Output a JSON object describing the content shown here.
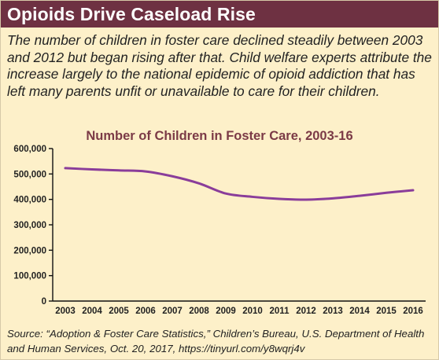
{
  "header": {
    "title": "Opioids Drive Caseload Rise"
  },
  "subtitle": "The number of children in foster care declined steadily between 2003 and 2012 but began rising after that. Child welfare experts attribute the increase largely to the national epidemic of opioid addiction that has left many parents unfit or unavailable to care for their children.",
  "source": "Source: “Adoption & Foster Care Statistics,” Children’s Bureau, U.S. Department of Health and Human Services, Oct. 20, 2017, https://tinyurl.com/y8wqrj4v",
  "colors": {
    "header_bg": "#6e3142",
    "panel_bg": "#fdf0c9",
    "line": "#8a3d9a",
    "chart_title": "#7b3a46"
  },
  "chart_data": {
    "type": "line",
    "title": "Number of Children in Foster Care, 2003-16",
    "xlabel": "",
    "ylabel": "",
    "x": [
      "2003",
      "2004",
      "2005",
      "2006",
      "2007",
      "2008",
      "2009",
      "2010",
      "2011",
      "2012",
      "2013",
      "2014",
      "2015",
      "2016"
    ],
    "series": [
      {
        "values": [
          523000,
          518000,
          514000,
          510000,
          491000,
          463000,
          423000,
          410000,
          402000,
          399000,
          404000,
          414000,
          426000,
          436000
        ]
      }
    ],
    "ylim": [
      0,
      600000
    ],
    "yticks": [
      {
        "value": 0,
        "label": "0"
      },
      {
        "value": 100000,
        "label": "100,000"
      },
      {
        "value": 200000,
        "label": "200,000"
      },
      {
        "value": 300000,
        "label": "300,000"
      },
      {
        "value": 400000,
        "label": "400,000"
      },
      {
        "value": 500000,
        "label": "500,000"
      },
      {
        "value": 600000,
        "label": "600,000"
      }
    ],
    "grid": false,
    "legend": "none"
  }
}
